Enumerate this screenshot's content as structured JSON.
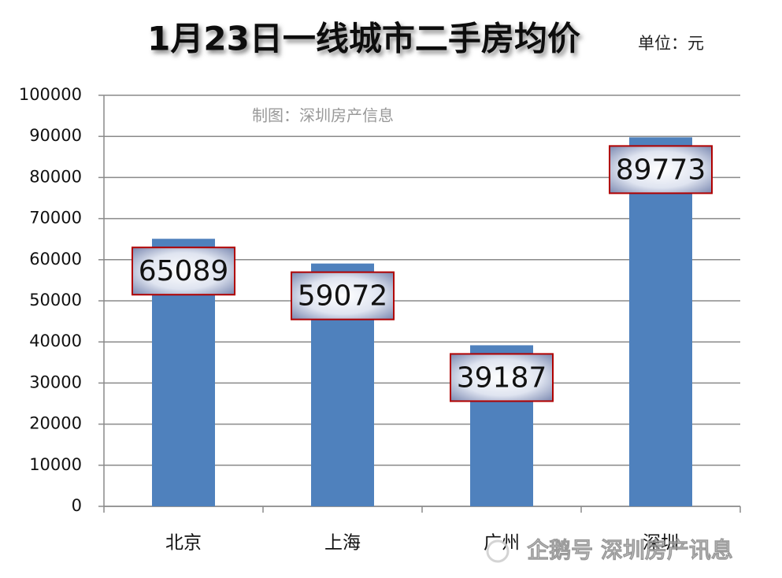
{
  "chart_data": {
    "type": "bar",
    "title": "1月23日一线城市二手房均价",
    "unit": "单位：元",
    "credit": "制图：深圳房产信息",
    "watermark": "企鹅号 深圳房产讯息",
    "categories": [
      "北京",
      "上海",
      "广州",
      "深圳"
    ],
    "values": [
      65089,
      59072,
      39187,
      89773
    ],
    "color": "#4f81bd",
    "ylim": [
      0,
      100000
    ],
    "yticks": [
      0,
      10000,
      20000,
      30000,
      40000,
      50000,
      60000,
      70000,
      80000,
      90000,
      100000
    ],
    "grid": true
  }
}
